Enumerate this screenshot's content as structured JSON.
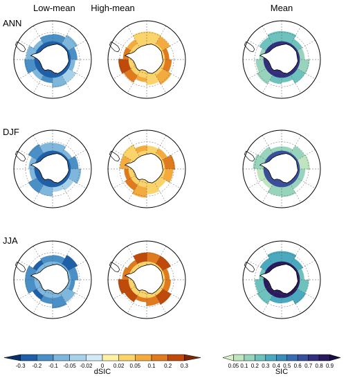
{
  "columns": [
    "Low-mean",
    "High-mean",
    "Mean"
  ],
  "rows": [
    "ANN",
    "DJF",
    "JJA"
  ],
  "colorbars": {
    "dsic": {
      "title": "dSIC",
      "ticks": [
        "-0.3",
        "-0.2",
        "-0.1",
        "-0.05",
        "-0.02",
        "0",
        "0.02",
        "0.05",
        "0.1",
        "0.2",
        "0.3"
      ],
      "colors": [
        "#08306b",
        "#1f5fa8",
        "#4a90c6",
        "#7fb6dc",
        "#a8d2ea",
        "#d3ebf6",
        "#fdf1a8",
        "#fbd36b",
        "#f3ab3f",
        "#e07a1f",
        "#bf4a0a",
        "#7f2704"
      ]
    },
    "sic": {
      "title": "SIC",
      "ticks": [
        "0.05",
        "0.1",
        "0.2",
        "0.3",
        "0.4",
        "0.5",
        "0.6",
        "0.7",
        "0.8",
        "0.9"
      ],
      "colors": [
        "#d9f0c8",
        "#bfe5bf",
        "#97d4bb",
        "#6dc2bd",
        "#4ba9bf",
        "#3a8cbb",
        "#376db0",
        "#3a4f9c",
        "#332f7f",
        "#2a1a5e",
        "#1c0d45"
      ]
    }
  },
  "panels": [
    {
      "row": "ANN",
      "column": "Low-mean",
      "ring": [
        2,
        3,
        2,
        3,
        4,
        3,
        2,
        3,
        2,
        3,
        3,
        2
      ],
      "inner": 1
    },
    {
      "row": "ANN",
      "column": "High-mean",
      "ring": [
        7,
        8,
        9,
        9,
        8,
        7,
        8,
        9,
        10,
        9,
        8,
        7
      ],
      "inner": 7
    },
    {
      "row": "ANN",
      "column": "Mean",
      "ring": [
        3,
        3,
        2,
        2,
        3,
        3,
        3,
        2,
        2,
        2,
        3,
        3
      ],
      "inner": 8
    },
    {
      "row": "DJF",
      "column": "Low-mean",
      "ring": [
        3,
        3,
        2,
        3,
        4,
        4,
        3,
        2,
        3,
        3,
        2,
        3
      ],
      "inner": 1
    },
    {
      "row": "DJF",
      "column": "High-mean",
      "ring": [
        7,
        8,
        9,
        8,
        7,
        7,
        8,
        9,
        9,
        8,
        7,
        8
      ],
      "inner": 7
    },
    {
      "row": "DJF",
      "column": "Mean",
      "ring": [
        2,
        2,
        1,
        2,
        2,
        2,
        2,
        1,
        1,
        2,
        2,
        2
      ],
      "inner": 7
    },
    {
      "row": "JJA",
      "column": "Low-mean",
      "ring": [
        2,
        1,
        2,
        2,
        3,
        2,
        2,
        1,
        2,
        2,
        1,
        2
      ],
      "inner": 3
    },
    {
      "row": "JJA",
      "column": "High-mean",
      "ring": [
        9,
        10,
        9,
        9,
        10,
        9,
        9,
        10,
        10,
        9,
        9,
        10
      ],
      "inner": 7
    },
    {
      "row": "JJA",
      "column": "Mean",
      "ring": [
        4,
        4,
        3,
        3,
        4,
        4,
        4,
        3,
        3,
        3,
        4,
        4
      ],
      "inner": 9
    }
  ]
}
